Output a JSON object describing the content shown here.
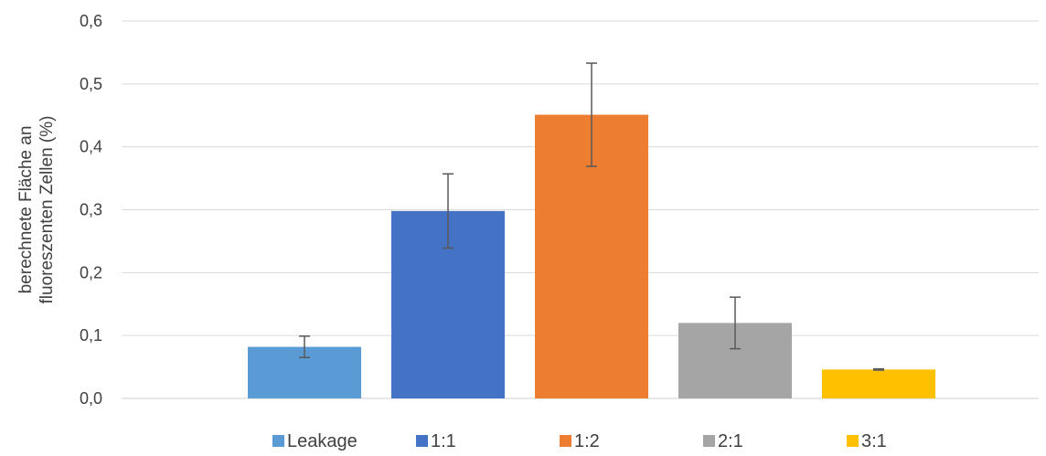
{
  "chart_data": {
    "type": "bar",
    "title": "",
    "xlabel": "",
    "ylabel_lines": [
      "berechnete Fläche an",
      "fluoreszenten Zellen (%)"
    ],
    "ylim": [
      0,
      0.6
    ],
    "yticks": [
      "0,0",
      "0,1",
      "0,2",
      "0,3",
      "0,4",
      "0,5",
      "0,6"
    ],
    "grid": true,
    "legend_position": "bottom",
    "series": [
      {
        "name": "Leakage",
        "value": 0.082,
        "error": 0.017,
        "color": "#5B9BD5"
      },
      {
        "name": "1:1",
        "value": 0.298,
        "error": 0.059,
        "color": "#4472C4"
      },
      {
        "name": "1:2",
        "value": 0.451,
        "error": 0.082,
        "color": "#ED7D31"
      },
      {
        "name": "2:1",
        "value": 0.12,
        "error": 0.041,
        "color": "#A5A5A5"
      },
      {
        "name": "3:1",
        "value": 0.046,
        "error": 0.001,
        "color": "#FFC000"
      }
    ]
  }
}
